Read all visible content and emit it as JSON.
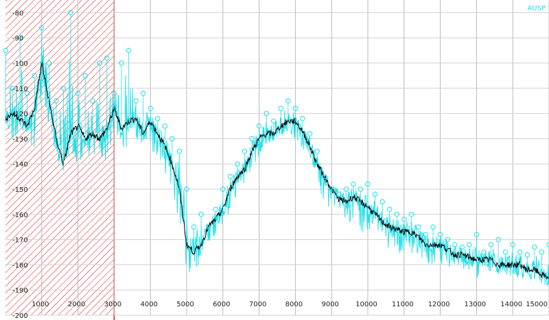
{
  "chart_data": {
    "type": "line",
    "xlim": [
      0,
      15000
    ],
    "ylim": [
      -200,
      -75
    ],
    "x_ticks": [
      1000,
      2000,
      3000,
      4000,
      5000,
      6000,
      7000,
      8000,
      9000,
      10000,
      11000,
      12000,
      13000,
      14000,
      15000
    ],
    "y_ticks": [
      -80,
      -90,
      -100,
      -110,
      -120,
      -130,
      -140,
      -150,
      -160,
      -170,
      -180,
      -190,
      -200
    ],
    "grid": true,
    "legend": [
      {
        "name": "AUSP",
        "color": "#19e0e8"
      }
    ],
    "legend_position": "top-right",
    "shaded_region": {
      "x_start": 0,
      "x_end": 3000,
      "color": "#e01010",
      "pattern": "diagonal-hatch"
    },
    "series": [
      {
        "name": "AUSP",
        "color": "#19e0e8",
        "style": "noisy-spectrum-with-peak-markers",
        "x": [
          0,
          200,
          400,
          600,
          800,
          1000,
          1200,
          1400,
          1600,
          1800,
          2000,
          2200,
          2400,
          2600,
          2800,
          3000,
          3200,
          3400,
          3600,
          3800,
          4000,
          4200,
          4400,
          4600,
          4800,
          5000,
          5200,
          5400,
          5600,
          5800,
          6000,
          6200,
          6400,
          6600,
          6800,
          7000,
          7200,
          7400,
          7600,
          7800,
          8000,
          8200,
          8400,
          8600,
          8800,
          9000,
          9200,
          9400,
          9600,
          9800,
          10000,
          10200,
          10400,
          10600,
          10800,
          11000,
          11200,
          11400,
          11600,
          11800,
          12000,
          12200,
          12400,
          12600,
          12800,
          13000,
          13200,
          13400,
          13600,
          13800,
          14000,
          14200,
          14400,
          14600,
          14800,
          15000
        ],
        "values": [
          -95,
          -110,
          -90,
          -112,
          -105,
          -86,
          -100,
          -115,
          -110,
          -80,
          -112,
          -105,
          -115,
          -100,
          -98,
          -112,
          -100,
          -95,
          -115,
          -112,
          -118,
          -122,
          -125,
          -130,
          -135,
          -150,
          -165,
          -160,
          -165,
          -158,
          -150,
          -145,
          -140,
          -135,
          -130,
          -125,
          -120,
          -123,
          -118,
          -115,
          -118,
          -122,
          -128,
          -135,
          -145,
          -150,
          -152,
          -150,
          -148,
          -150,
          -148,
          -152,
          -155,
          -158,
          -160,
          -162,
          -160,
          -165,
          -168,
          -165,
          -168,
          -170,
          -172,
          -173,
          -172,
          -168,
          -175,
          -172,
          -170,
          -175,
          -172,
          -175,
          -176,
          -173,
          -175,
          -172
        ],
        "noise_floor": [
          -120,
          -135,
          -125,
          -130,
          -135,
          -122,
          -125,
          -140,
          -145,
          -135,
          -140,
          -138,
          -140,
          -140,
          -138,
          -128,
          -135,
          -135,
          -130,
          -132,
          -135,
          -140,
          -145,
          -152,
          -165,
          -182,
          -185,
          -180,
          -172,
          -168,
          -165,
          -158,
          -152,
          -148,
          -142,
          -138,
          -135,
          -132,
          -130,
          -128,
          -130,
          -135,
          -142,
          -150,
          -155,
          -160,
          -162,
          -163,
          -165,
          -168,
          -168,
          -170,
          -172,
          -174,
          -175,
          -176,
          -176,
          -177,
          -180,
          -180,
          -180,
          -181,
          -181,
          -182,
          -182,
          -186,
          -183,
          -183,
          -184,
          -184,
          -185,
          -186,
          -187,
          -187,
          -188,
          -188
        ]
      },
      {
        "name": "",
        "color": "#000000",
        "style": "smoothed",
        "x": [
          0,
          200,
          400,
          600,
          800,
          1000,
          1200,
          1400,
          1600,
          1800,
          2000,
          2200,
          2400,
          2600,
          2800,
          3000,
          3200,
          3400,
          3600,
          3800,
          4000,
          4200,
          4400,
          4600,
          4800,
          5000,
          5200,
          5400,
          5600,
          5800,
          6000,
          6200,
          6400,
          6600,
          6800,
          7000,
          7200,
          7400,
          7600,
          7800,
          8000,
          8200,
          8400,
          8600,
          8800,
          9000,
          9200,
          9400,
          9600,
          9800,
          10000,
          10200,
          10400,
          10600,
          10800,
          11000,
          11200,
          11400,
          11600,
          11800,
          12000,
          12200,
          12400,
          12600,
          12800,
          13000,
          13200,
          13400,
          13600,
          13800,
          14000,
          14200,
          14400,
          14600,
          14800,
          15000
        ],
        "values": [
          -122,
          -120,
          -122,
          -125,
          -118,
          -100,
          -115,
          -130,
          -140,
          -128,
          -125,
          -130,
          -128,
          -130,
          -126,
          -118,
          -126,
          -123,
          -122,
          -128,
          -123,
          -128,
          -133,
          -140,
          -150,
          -172,
          -175,
          -172,
          -165,
          -162,
          -158,
          -150,
          -145,
          -142,
          -135,
          -130,
          -128,
          -128,
          -125,
          -123,
          -123,
          -127,
          -133,
          -140,
          -145,
          -150,
          -154,
          -155,
          -153,
          -155,
          -157,
          -160,
          -163,
          -165,
          -166,
          -167,
          -167,
          -169,
          -172,
          -172,
          -172,
          -174,
          -176,
          -176,
          -177,
          -178,
          -178,
          -178,
          -180,
          -180,
          -180,
          -180,
          -182,
          -182,
          -184,
          -185
        ]
      }
    ]
  }
}
